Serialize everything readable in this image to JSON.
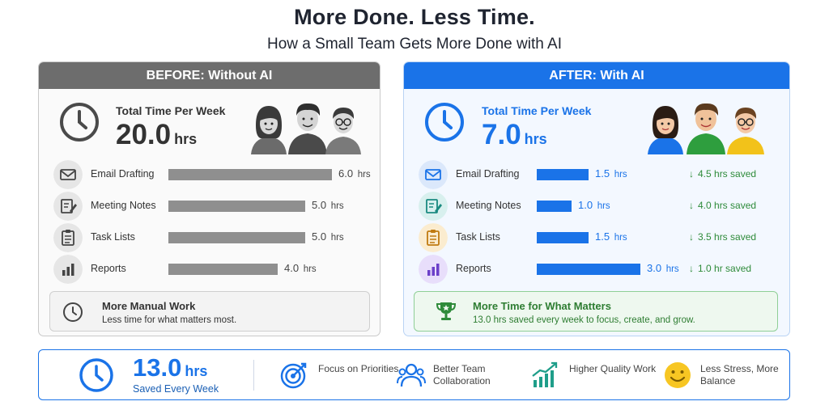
{
  "header": {
    "title": "More Done. Less Time.",
    "subtitle": "How a Small Team Gets More Done with AI"
  },
  "colors": {
    "accent": "#1a73e8",
    "before_gray": "#6d6d6d",
    "bar_gray": "#8f8f8f",
    "saved_green": "#2e8b3a"
  },
  "before": {
    "header": "BEFORE: Without AI",
    "summary_label": "Total Time Per Week",
    "summary_value": "20.0",
    "summary_unit": "hrs",
    "tasks": [
      {
        "label": "Email Drafting",
        "value": "6.0",
        "unit": "hrs",
        "hours": 6.0,
        "icon": "envelope-icon"
      },
      {
        "label": "Meeting Notes",
        "value": "5.0",
        "unit": "hrs",
        "hours": 5.0,
        "icon": "notes-icon"
      },
      {
        "label": "Task Lists",
        "value": "5.0",
        "unit": "hrs",
        "hours": 5.0,
        "icon": "clipboard-icon"
      },
      {
        "label": "Reports",
        "value": "4.0",
        "unit": "hrs",
        "hours": 4.0,
        "icon": "bar-chart-icon"
      }
    ],
    "note_title": "More Manual Work",
    "note_text": "Less time for what matters most."
  },
  "after": {
    "header": "AFTER: With AI",
    "summary_label": "Total Time Per Week",
    "summary_value": "7.0",
    "summary_unit": "hrs",
    "tasks": [
      {
        "label": "Email Drafting",
        "value": "1.5",
        "unit": "hrs",
        "hours": 1.5,
        "saved": "4.5 hrs saved",
        "icon": "envelope-icon"
      },
      {
        "label": "Meeting Notes",
        "value": "1.0",
        "unit": "hrs",
        "hours": 1.0,
        "saved": "4.0 hrs saved",
        "icon": "notes-icon"
      },
      {
        "label": "Task Lists",
        "value": "1.5",
        "unit": "hrs",
        "hours": 1.5,
        "saved": "3.5 hrs saved",
        "icon": "clipboard-icon"
      },
      {
        "label": "Reports",
        "value": "3.0",
        "unit": "hrs",
        "hours": 3.0,
        "saved": "1.0 hr saved",
        "icon": "bar-chart-icon"
      }
    ],
    "note_title": "More Time for What Matters",
    "note_text": "13.0 hrs saved every week to focus, create, and grow."
  },
  "footer": {
    "hours": "13.0",
    "unit": "hrs",
    "subtitle": "Saved Every Week",
    "benefits": [
      {
        "label": "Focus on Priorities",
        "icon": "target-icon"
      },
      {
        "label": "Better Team Collaboration",
        "icon": "team-icon"
      },
      {
        "label": "Higher Quality Work",
        "icon": "growth-chart-icon"
      },
      {
        "label": "Less Stress, More Balance",
        "icon": "smile-icon"
      }
    ]
  }
}
